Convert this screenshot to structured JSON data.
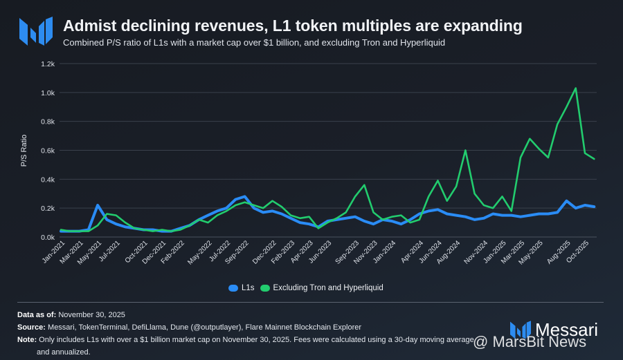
{
  "header": {
    "title": "Admist declining revenues, L1 token multiples are expanding",
    "subtitle": "Combined P/S ratio of L1s with a market cap over $1 billion, and excluding Tron and Hyperliquid"
  },
  "colors": {
    "l1s": "#2a8cf5",
    "excluding": "#22cc6e",
    "grid": "#3a414c",
    "logo": "#2d8cf0"
  },
  "chart_data": {
    "type": "line",
    "title": "Admist declining revenues, L1 token multiples are expanding",
    "xlabel": "",
    "ylabel": "P/S Ratio",
    "ylim": [
      0,
      1.2
    ],
    "y_unit": "k",
    "yticks": [
      "0.0k",
      "0.2k",
      "0.4k",
      "0.6k",
      "0.8k",
      "1.0k",
      "1.2k"
    ],
    "grid": true,
    "legend": "bottom-center",
    "xtick_labels": [
      "Jan-2021",
      "Mar-2021",
      "May-2021",
      "Jul-2021",
      "Oct-2021",
      "Dec-2021",
      "Feb-2022",
      "May-2022",
      "Jul-2022",
      "Sep-2022",
      "Dec-2022",
      "Feb-2023",
      "Apr-2023",
      "Jun-2023",
      "Sep-2023",
      "Nov-2023",
      "Jan-2024",
      "Apr-2024",
      "Jun-2024",
      "Aug-2024",
      "Nov-2024",
      "Jan-2025",
      "Mar-2025",
      "May-2025",
      "Aug-2025",
      "Oct-2025"
    ],
    "xtick_month_index": [
      0,
      2,
      4,
      6,
      9,
      11,
      13,
      16,
      18,
      20,
      23,
      25,
      27,
      29,
      32,
      34,
      36,
      39,
      41,
      43,
      46,
      48,
      50,
      52,
      55,
      57
    ],
    "x": [
      "2021-01",
      "2021-02",
      "2021-03",
      "2021-04",
      "2021-05",
      "2021-06",
      "2021-07",
      "2021-08",
      "2021-09",
      "2021-10",
      "2021-11",
      "2021-12",
      "2022-01",
      "2022-02",
      "2022-03",
      "2022-04",
      "2022-05",
      "2022-06",
      "2022-07",
      "2022-08",
      "2022-09",
      "2022-10",
      "2022-11",
      "2022-12",
      "2023-01",
      "2023-02",
      "2023-03",
      "2023-04",
      "2023-05",
      "2023-06",
      "2023-07",
      "2023-08",
      "2023-09",
      "2023-10",
      "2023-11",
      "2023-12",
      "2024-01",
      "2024-02",
      "2024-03",
      "2024-04",
      "2024-05",
      "2024-06",
      "2024-07",
      "2024-08",
      "2024-09",
      "2024-10",
      "2024-11",
      "2024-12",
      "2025-01",
      "2025-02",
      "2025-03",
      "2025-04",
      "2025-05",
      "2025-06",
      "2025-07",
      "2025-08",
      "2025-09",
      "2025-10",
      "2025-11"
    ],
    "series": [
      {
        "name": "L1s",
        "values": [
          0.04,
          0.04,
          0.04,
          0.05,
          0.22,
          0.12,
          0.09,
          0.07,
          0.06,
          0.05,
          0.05,
          0.04,
          0.04,
          0.06,
          0.08,
          0.12,
          0.15,
          0.18,
          0.2,
          0.26,
          0.28,
          0.2,
          0.17,
          0.18,
          0.16,
          0.13,
          0.1,
          0.09,
          0.07,
          0.11,
          0.12,
          0.13,
          0.14,
          0.11,
          0.09,
          0.12,
          0.11,
          0.09,
          0.12,
          0.16,
          0.18,
          0.19,
          0.16,
          0.15,
          0.14,
          0.12,
          0.13,
          0.16,
          0.15,
          0.15,
          0.14,
          0.15,
          0.16,
          0.16,
          0.17,
          0.25,
          0.2,
          0.22,
          0.21
        ]
      },
      {
        "name": "Excluding Tron and Hyperliquid",
        "values": [
          0.05,
          0.04,
          0.04,
          0.04,
          0.08,
          0.16,
          0.15,
          0.1,
          0.06,
          0.05,
          0.04,
          0.05,
          0.04,
          0.05,
          0.08,
          0.12,
          0.1,
          0.15,
          0.18,
          0.22,
          0.24,
          0.22,
          0.2,
          0.25,
          0.21,
          0.15,
          0.13,
          0.14,
          0.06,
          0.1,
          0.13,
          0.17,
          0.28,
          0.36,
          0.17,
          0.12,
          0.14,
          0.15,
          0.1,
          0.12,
          0.28,
          0.39,
          0.25,
          0.35,
          0.6,
          0.3,
          0.22,
          0.2,
          0.28,
          0.18,
          0.55,
          0.68,
          0.61,
          0.55,
          0.78,
          0.9,
          1.03,
          0.58,
          0.54
        ]
      }
    ]
  },
  "legend": {
    "items": [
      "L1s",
      "Excluding Tron and Hyperliquid"
    ]
  },
  "footer": {
    "data_as_of_label": "Data as of:",
    "data_as_of_value": "November 30, 2025",
    "source_label": "Source:",
    "source_value": "Messari, TokenTerminal, DefiLlama, Dune (@outputlayer), Flare Mainnet Blockchain Explorer",
    "note_label": "Note:",
    "note_value": "Only includes L1s with over a $1 billion market cap on November 30, 2025. Fees were calculated using a 30-day moving average",
    "note_value_2": "and annualized."
  },
  "brand": {
    "name": "Messari"
  },
  "watermark": {
    "text": "@ MarsBit News"
  }
}
